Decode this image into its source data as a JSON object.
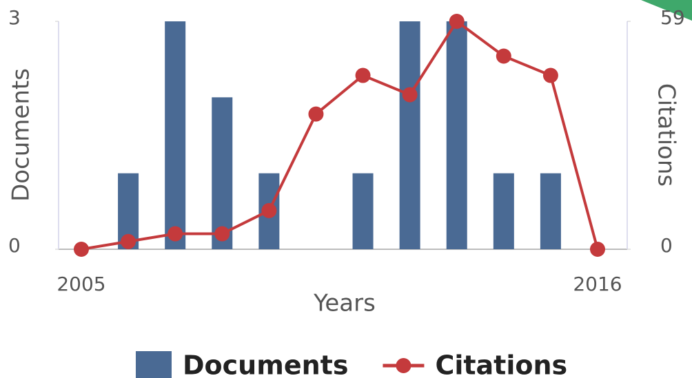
{
  "chart_data": {
    "type": "bar",
    "x_label": "Years",
    "y_label": "Documents",
    "y2_label": "Citations",
    "categories": [
      "2005",
      null,
      null,
      null,
      null,
      null,
      null,
      null,
      null,
      null,
      null,
      "2016"
    ],
    "series": [
      {
        "name": "Documents",
        "type": "bar",
        "color": "#4a6a94",
        "values": [
          0,
          1,
          3,
          2,
          1,
          0,
          1,
          3,
          3,
          1,
          1,
          0
        ]
      },
      {
        "name": "Citations",
        "type": "line",
        "axis": "y2",
        "color": "#c43a3c",
        "values": [
          0,
          2,
          4,
          4,
          10,
          35,
          45,
          40,
          59,
          50,
          45,
          0
        ]
      }
    ],
    "ylim": [
      0,
      3
    ],
    "yticks": [
      0,
      3
    ],
    "y2lim": [
      0,
      59
    ],
    "y2ticks": [
      0,
      59
    ],
    "legend": "bottom"
  }
}
